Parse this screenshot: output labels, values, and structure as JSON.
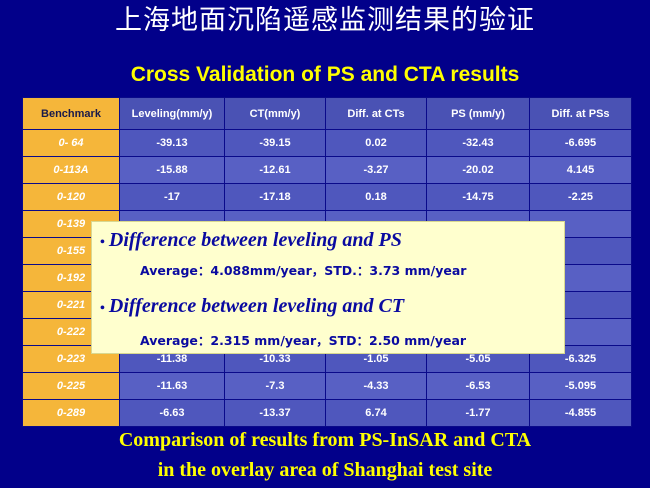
{
  "title": {
    "chinese": "上海地面沉陷遥感监测结果的验证",
    "english": "Cross Validation of PS and CTA results"
  },
  "table": {
    "headers": [
      "Benchmark",
      "Leveling(mm/y)",
      "CT(mm/y)",
      "Diff. at CTs",
      "PS (mm/y)",
      "Diff. at PSs"
    ],
    "rows": [
      [
        "0- 64",
        "-39.13",
        "-39.15",
        "0.02",
        "-32.43",
        "-6.695"
      ],
      [
        "0-113A",
        "-15.88",
        "-12.61",
        "-3.27",
        "-20.02",
        "4.145"
      ],
      [
        "0-120",
        "-17",
        "-17.18",
        "0.18",
        "-14.75",
        "-2.25"
      ],
      [
        "0-139",
        "",
        "",
        "",
        "",
        ""
      ],
      [
        "0-155",
        "",
        "",
        "",
        "",
        ""
      ],
      [
        "0-192",
        "",
        "",
        "",
        "",
        ""
      ],
      [
        "0-221",
        "",
        "",
        "",
        "",
        ""
      ],
      [
        "0-222",
        "",
        "",
        "",
        "",
        ""
      ],
      [
        "0-223",
        "-11.38",
        "-10.33",
        "-1.05",
        "-5.05",
        "-6.325"
      ],
      [
        "0-225",
        "-11.63",
        "-7.3",
        "-4.33",
        "-6.53",
        "-5.095"
      ],
      [
        "0-289",
        "-6.63",
        "-13.37",
        "6.74",
        "-1.77",
        "-4.855"
      ]
    ]
  },
  "overlay": {
    "bullet1": "Difference between leveling and PS",
    "stats1": "Average：4.088mm/year，STD.：3.73 mm/year",
    "bullet2": "Difference between leveling and CT",
    "stats2": "Average：2.315 mm/year，STD：2.50 mm/year"
  },
  "caption": {
    "line1": "Comparison of results from PS-InSAR and CTA",
    "line2": "in the overlay area of Shanghai test site"
  },
  "colors": {
    "background": "#02008a",
    "header_benchmark": "#f5b63a",
    "cell": "#4f57bd",
    "overlay": "#ffffce",
    "caption": "#ffff00"
  }
}
